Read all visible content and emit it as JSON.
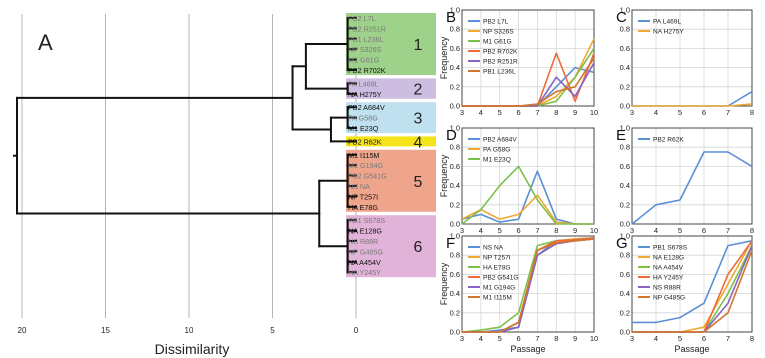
{
  "dendrogram": {
    "panel_letter": "A",
    "xlabel": "Dissimilarity",
    "xticks": [
      "20",
      "15",
      "10",
      "5",
      "0"
    ],
    "clusters": [
      {
        "number": "1",
        "color": "#9ed28a",
        "members": [
          {
            "label": "PB2 L7L",
            "highlight": false
          },
          {
            "label": "PB2 R251R",
            "highlight": false
          },
          {
            "label": "PB1 L236L",
            "highlight": false
          },
          {
            "label": "NP S326S",
            "highlight": false
          },
          {
            "label": "M1 G61G",
            "highlight": false
          },
          {
            "label": "PB2 R702K",
            "highlight": true
          }
        ]
      },
      {
        "number": "2",
        "color": "#cdbde0",
        "members": [
          {
            "label": "PA L469L",
            "highlight": false
          },
          {
            "label": "NA H275Y",
            "highlight": true
          }
        ]
      },
      {
        "number": "3",
        "color": "#bfe0ee",
        "members": [
          {
            "label": "PB2 A684V",
            "highlight": true
          },
          {
            "label": "PA G58G",
            "highlight": false
          },
          {
            "label": "M1 E23Q",
            "highlight": true
          }
        ]
      },
      {
        "number": "4",
        "color": "#f5e41a",
        "members": [
          {
            "label": "PB2 R62K",
            "highlight": true
          }
        ]
      },
      {
        "number": "5",
        "color": "#eea58c",
        "members": [
          {
            "label": "M1 I115M",
            "highlight": true
          },
          {
            "label": "M1 G194G",
            "highlight": false
          },
          {
            "label": "PB2 G541G",
            "highlight": false
          },
          {
            "label": "NS NA",
            "highlight": false
          },
          {
            "label": "NP T257I",
            "highlight": true
          },
          {
            "label": "HA E78G",
            "highlight": true
          }
        ]
      },
      {
        "number": "6",
        "color": "#e2b3d8",
        "members": [
          {
            "label": "PB1 S678S",
            "highlight": false
          },
          {
            "label": "NA E128G",
            "highlight": true
          },
          {
            "label": "NS R88R",
            "highlight": false
          },
          {
            "label": "NP G485G",
            "highlight": false
          },
          {
            "label": "NA A454V",
            "highlight": true
          },
          {
            "label": "HA Y245Y",
            "highlight": false
          }
        ]
      }
    ]
  },
  "colors": {
    "blue": "#5b8fd6",
    "orange": "#f0a832",
    "green": "#7cc04a",
    "red": "#f06a3a",
    "purple": "#8a64c0",
    "brown": "#d2762c"
  },
  "chart_data": [
    {
      "panel": "B",
      "type": "line",
      "ylabel": "Frequency",
      "xlabel": "",
      "xlim": [
        3,
        10
      ],
      "ylim": [
        0,
        1
      ],
      "xticks": [
        "3",
        "4",
        "5",
        "6",
        "7",
        "8",
        "9",
        "10"
      ],
      "yticks": [
        "0.0",
        "0.2",
        "0.4",
        "0.6",
        "0.8",
        "1.0"
      ],
      "x": [
        3,
        4,
        5,
        6,
        7,
        8,
        9,
        10
      ],
      "series": [
        {
          "name": "PB2 L7L",
          "color": "#5b8fd6",
          "values": [
            0,
            0,
            0,
            0,
            0,
            0.2,
            0.4,
            0.35
          ]
        },
        {
          "name": "NP S326S",
          "color": "#f0a832",
          "values": [
            0,
            0,
            0,
            0,
            0,
            0.1,
            0.3,
            0.7
          ]
        },
        {
          "name": "M1 G61G",
          "color": "#7cc04a",
          "values": [
            0,
            0,
            0,
            0,
            0,
            0.05,
            0.3,
            0.6
          ]
        },
        {
          "name": "PB2 R702K",
          "color": "#f06a3a",
          "values": [
            0,
            0,
            0,
            0,
            0,
            0.55,
            0.05,
            0.55
          ]
        },
        {
          "name": "PB2 R251R",
          "color": "#8a64c0",
          "values": [
            0,
            0,
            0,
            0,
            0,
            0.3,
            0.1,
            0.45
          ]
        },
        {
          "name": "PB1 L236L",
          "color": "#d2762c",
          "values": [
            0,
            0,
            0,
            0,
            0.02,
            0.15,
            0.2,
            0.5
          ]
        }
      ]
    },
    {
      "panel": "C",
      "type": "line",
      "ylabel": "",
      "xlabel": "",
      "xlim": [
        3,
        8
      ],
      "ylim": [
        0,
        1
      ],
      "xticks": [
        "3",
        "4",
        "5",
        "6",
        "7",
        "8"
      ],
      "yticks": [
        "0.0",
        "0.2",
        "0.4",
        "0.6",
        "0.8",
        "1.0"
      ],
      "x": [
        3,
        4,
        5,
        6,
        7,
        8
      ],
      "series": [
        {
          "name": "PA L469L",
          "color": "#5b8fd6",
          "values": [
            0,
            0,
            0,
            0,
            0,
            0.15
          ]
        },
        {
          "name": "NA H275Y",
          "color": "#f0a832",
          "values": [
            0,
            0,
            0,
            0,
            0,
            0.02
          ]
        }
      ]
    },
    {
      "panel": "D",
      "type": "line",
      "ylabel": "Frequency",
      "xlabel": "",
      "xlim": [
        3,
        10
      ],
      "ylim": [
        0,
        1
      ],
      "xticks": [
        "3",
        "4",
        "5",
        "6",
        "7",
        "8",
        "9",
        "10"
      ],
      "yticks": [
        "0.0",
        "0.2",
        "0.4",
        "0.6",
        "0.8",
        "1.0"
      ],
      "x": [
        3,
        4,
        5,
        6,
        7,
        8,
        9,
        10
      ],
      "series": [
        {
          "name": "PB2 A684V",
          "color": "#5b8fd6",
          "values": [
            0.05,
            0.1,
            0.02,
            0.05,
            0.55,
            0.05,
            0,
            0
          ]
        },
        {
          "name": "PA G58G",
          "color": "#f0a832",
          "values": [
            0.05,
            0.15,
            0.05,
            0.1,
            0.3,
            0.02,
            0,
            0
          ]
        },
        {
          "name": "M1 E23Q",
          "color": "#7cc04a",
          "values": [
            0,
            0.15,
            0.4,
            0.6,
            0.25,
            0,
            0,
            0
          ]
        }
      ]
    },
    {
      "panel": "E",
      "type": "line",
      "ylabel": "",
      "xlabel": "",
      "xlim": [
        3,
        8
      ],
      "ylim": [
        0,
        1
      ],
      "xticks": [
        "3",
        "4",
        "5",
        "6",
        "7",
        "8"
      ],
      "yticks": [
        "0.0",
        "0.2",
        "0.4",
        "0.6",
        "0.8",
        "1.0"
      ],
      "x": [
        3,
        4,
        5,
        6,
        7,
        8
      ],
      "series": [
        {
          "name": "PB2 R62K",
          "color": "#5b8fd6",
          "values": [
            0,
            0.2,
            0.25,
            0.75,
            0.75,
            0.6
          ]
        }
      ]
    },
    {
      "panel": "F",
      "type": "line",
      "ylabel": "Frequency",
      "xlabel": "Passage",
      "xlim": [
        3,
        10
      ],
      "ylim": [
        0,
        1
      ],
      "xticks": [
        "3",
        "4",
        "5",
        "6",
        "7",
        "8",
        "9",
        "10"
      ],
      "yticks": [
        "0.0",
        "0.2",
        "0.4",
        "0.6",
        "0.8",
        "1.0"
      ],
      "x": [
        3,
        4,
        5,
        6,
        7,
        8,
        9,
        10
      ],
      "series": [
        {
          "name": "NS NA",
          "color": "#5b8fd6",
          "values": [
            0,
            0,
            0.02,
            0.05,
            0.8,
            0.95,
            0.97,
            0.98
          ]
        },
        {
          "name": "NP T257I",
          "color": "#f0a832",
          "values": [
            0,
            0,
            0,
            0.1,
            0.85,
            0.95,
            0.97,
            0.98
          ]
        },
        {
          "name": "HA E78G",
          "color": "#7cc04a",
          "values": [
            0,
            0.02,
            0.05,
            0.2,
            0.9,
            0.95,
            0.95,
            0.97
          ]
        },
        {
          "name": "PB2 G541G",
          "color": "#f06a3a",
          "values": [
            0,
            0,
            0,
            0.1,
            0.85,
            0.95,
            0.96,
            0.98
          ]
        },
        {
          "name": "M1 G194G",
          "color": "#8a64c0",
          "values": [
            0,
            0,
            0,
            0.05,
            0.8,
            0.92,
            0.95,
            0.97
          ]
        },
        {
          "name": "M1 I115M",
          "color": "#d2762c",
          "values": [
            0,
            0,
            0,
            0.1,
            0.85,
            0.93,
            0.95,
            0.97
          ]
        }
      ]
    },
    {
      "panel": "G",
      "type": "line",
      "ylabel": "",
      "xlabel": "Passage",
      "xlim": [
        3,
        8
      ],
      "ylim": [
        0,
        1
      ],
      "xticks": [
        "3",
        "4",
        "5",
        "6",
        "7",
        "8"
      ],
      "yticks": [
        "0.0",
        "0.2",
        "0.4",
        "0.6",
        "0.8",
        "1.0"
      ],
      "x": [
        3,
        4,
        5,
        6,
        7,
        8
      ],
      "series": [
        {
          "name": "PB1 S678S",
          "color": "#5b8fd6",
          "values": [
            0.1,
            0.1,
            0.15,
            0.3,
            0.9,
            0.95
          ]
        },
        {
          "name": "NA E128G",
          "color": "#f0a832",
          "values": [
            0,
            0,
            0,
            0.05,
            0.5,
            0.95
          ]
        },
        {
          "name": "NA A454V",
          "color": "#7cc04a",
          "values": [
            0,
            0,
            0,
            0,
            0.4,
            0.9
          ]
        },
        {
          "name": "HA Y245Y",
          "color": "#f06a3a",
          "values": [
            0,
            0,
            0,
            0,
            0.6,
            0.95
          ]
        },
        {
          "name": "NS R88R",
          "color": "#8a64c0",
          "values": [
            0,
            0,
            0,
            0,
            0.3,
            0.9
          ]
        },
        {
          "name": "NP G485G",
          "color": "#d2762c",
          "values": [
            0,
            0,
            0,
            0,
            0.2,
            0.85
          ]
        }
      ]
    }
  ]
}
